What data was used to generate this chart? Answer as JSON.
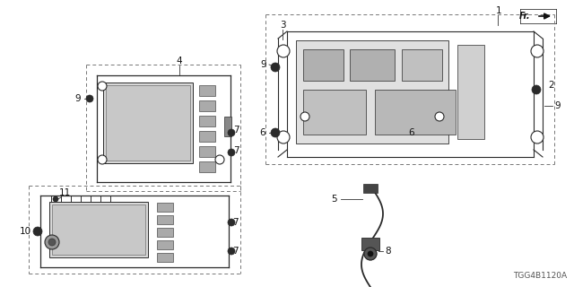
{
  "bg_color": "#ffffff",
  "line_color": "#2a2a2a",
  "dash_color": "#555555",
  "diagram_code": "TGG4B1120A",
  "figsize": [
    6.4,
    3.2
  ],
  "dpi": 100,
  "label_fontsize": 7.5,
  "small_fontsize": 6.5
}
